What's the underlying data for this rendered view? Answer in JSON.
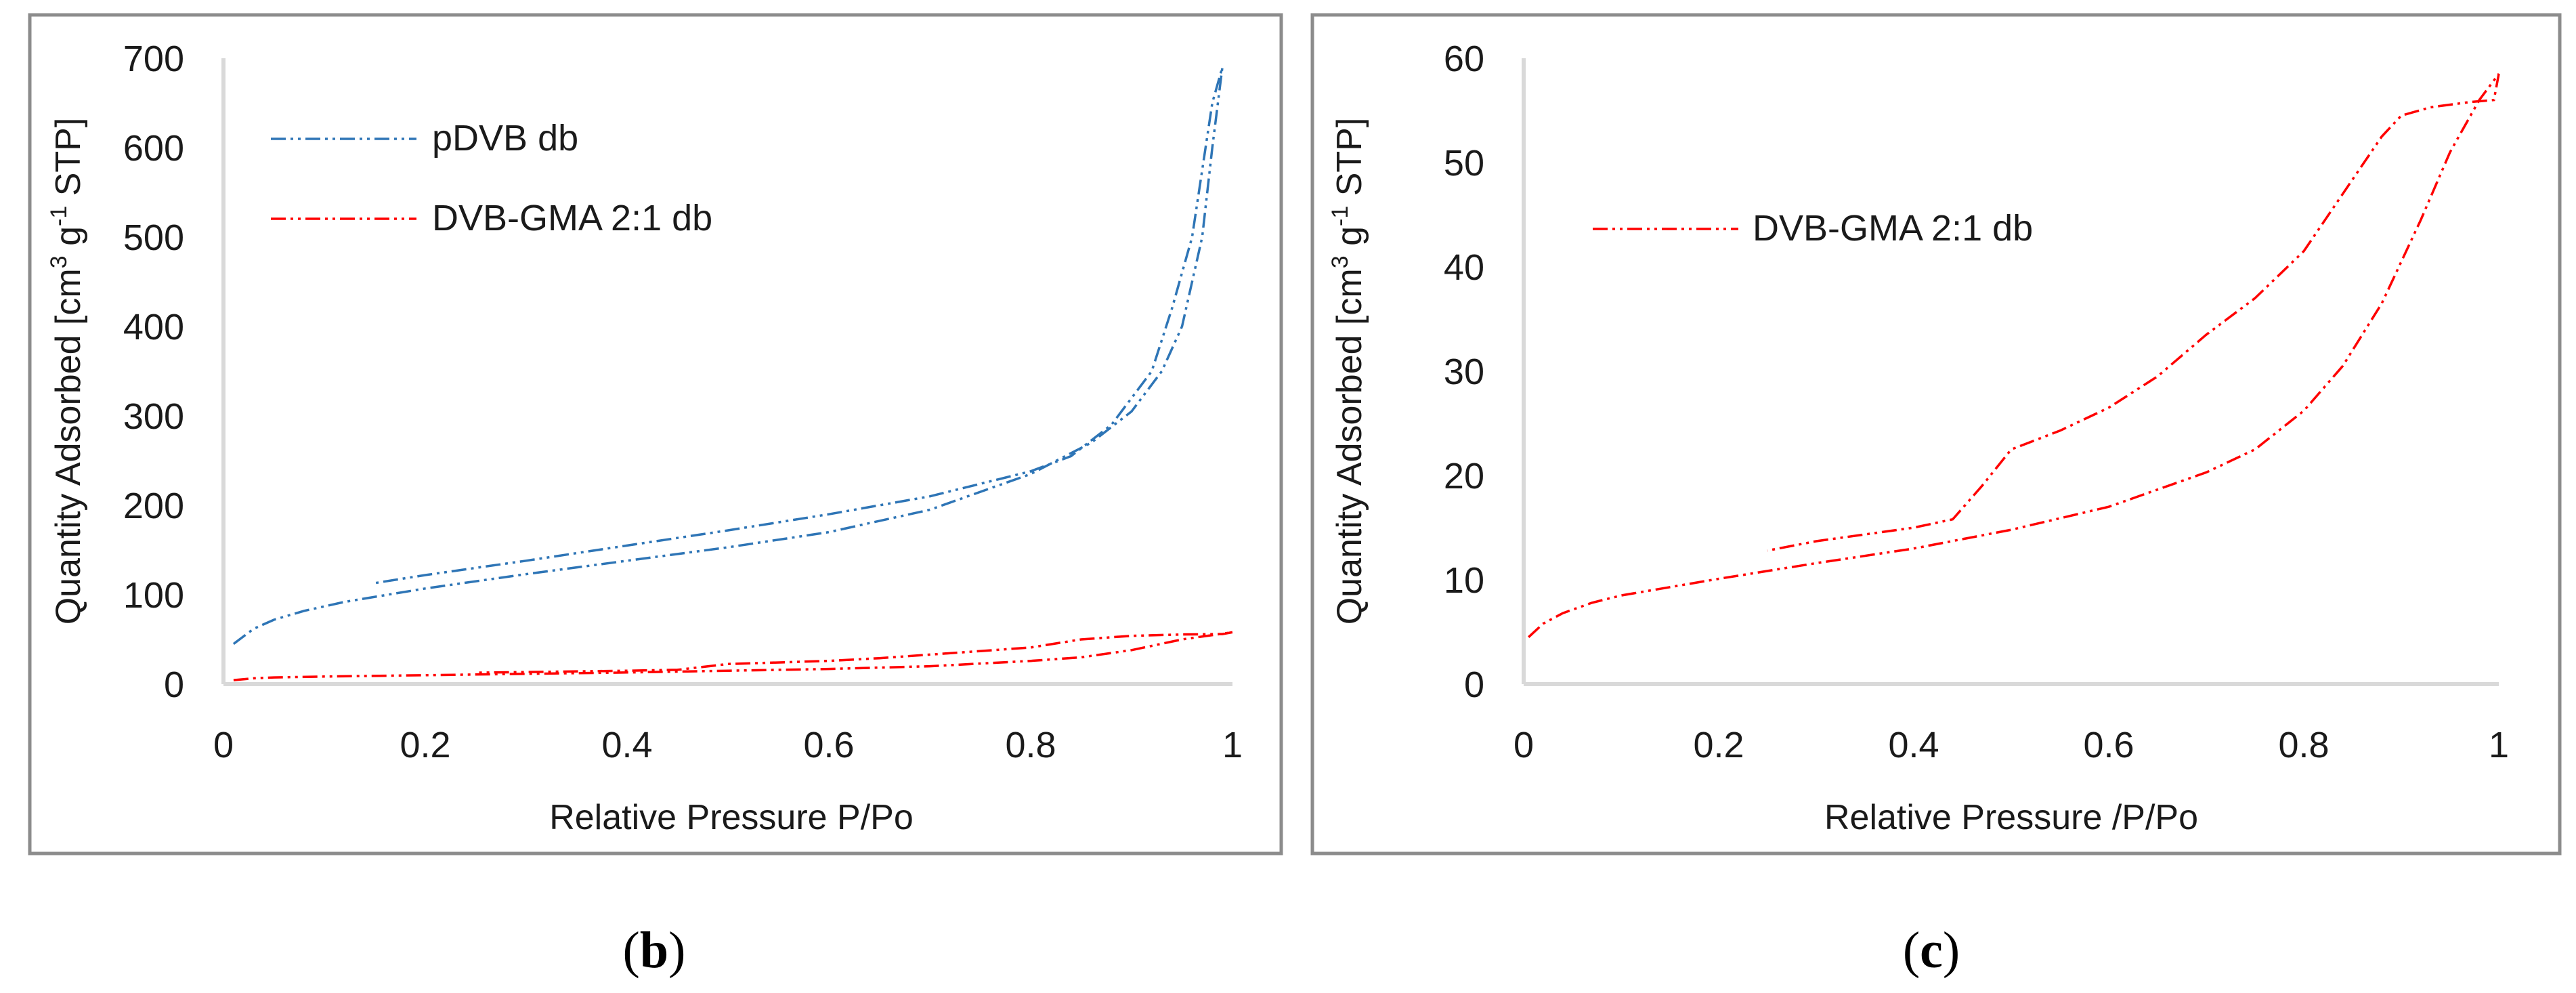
{
  "chart_data": [
    {
      "type": "line",
      "panel_label": "b",
      "xlabel": "Relative Pressure P/Po",
      "ylabel_parts": [
        "Quantity Adsorbed [cm",
        "3",
        " g",
        "-1",
        " STP]"
      ],
      "xlim": [
        0,
        1
      ],
      "ylim": [
        0,
        700
      ],
      "x_ticks": [
        0,
        0.2,
        0.4,
        0.6,
        0.8,
        1
      ],
      "x_tick_labels": [
        "0",
        "0.2",
        "0.4",
        "0.6",
        "0.8",
        "1"
      ],
      "y_ticks": [
        0,
        100,
        200,
        300,
        400,
        500,
        600,
        700
      ],
      "y_tick_labels": [
        "0",
        "100",
        "200",
        "300",
        "400",
        "500",
        "600",
        "700"
      ],
      "legend_position": "top-left",
      "series": [
        {
          "name": "pDVB db",
          "color": "#2e75b6",
          "adsorption": [
            [
              0.01,
              45
            ],
            [
              0.03,
              62
            ],
            [
              0.05,
              72
            ],
            [
              0.08,
              82
            ],
            [
              0.12,
              92
            ],
            [
              0.2,
              107
            ],
            [
              0.3,
              123
            ],
            [
              0.4,
              138
            ],
            [
              0.5,
              153
            ],
            [
              0.6,
              170
            ],
            [
              0.7,
              195
            ],
            [
              0.8,
              235
            ],
            [
              0.86,
              270
            ],
            [
              0.9,
              305
            ],
            [
              0.93,
              350
            ],
            [
              0.95,
              400
            ],
            [
              0.97,
              500
            ],
            [
              0.98,
              600
            ],
            [
              0.99,
              690
            ]
          ],
          "desorption": [
            [
              0.99,
              690
            ],
            [
              0.98,
              650
            ],
            [
              0.96,
              500
            ],
            [
              0.94,
              420
            ],
            [
              0.92,
              350
            ],
            [
              0.88,
              290
            ],
            [
              0.84,
              255
            ],
            [
              0.8,
              238
            ],
            [
              0.7,
              210
            ],
            [
              0.6,
              190
            ],
            [
              0.5,
              172
            ],
            [
              0.4,
              155
            ],
            [
              0.3,
              138
            ],
            [
              0.2,
              122
            ],
            [
              0.15,
              113
            ]
          ]
        },
        {
          "name": "DVB-GMA 2:1 db",
          "color": "#ff0000",
          "adsorption": [
            [
              0.01,
              4.5
            ],
            [
              0.03,
              6.5
            ],
            [
              0.05,
              7.5
            ],
            [
              0.1,
              8.5
            ],
            [
              0.2,
              10
            ],
            [
              0.3,
              11.5
            ],
            [
              0.4,
              13
            ],
            [
              0.5,
              15
            ],
            [
              0.6,
              17
            ],
            [
              0.7,
              20
            ],
            [
              0.8,
              26
            ],
            [
              0.85,
              30
            ],
            [
              0.9,
              38
            ],
            [
              0.95,
              50
            ],
            [
              1,
              58
            ]
          ],
          "desorption": [
            [
              1,
              58
            ],
            [
              0.99,
              56
            ],
            [
              0.95,
              55.5
            ],
            [
              0.9,
              54
            ],
            [
              0.85,
              50
            ],
            [
              0.8,
              41
            ],
            [
              0.75,
              37
            ],
            [
              0.7,
              33
            ],
            [
              0.65,
              29
            ],
            [
              0.6,
              26
            ],
            [
              0.5,
              22.5
            ],
            [
              0.45,
              16
            ],
            [
              0.4,
              15
            ],
            [
              0.3,
              13.5
            ],
            [
              0.25,
              12.8
            ]
          ]
        }
      ]
    },
    {
      "type": "line",
      "panel_label": "c",
      "xlabel": "Relative Pressure /P/Po",
      "ylabel_parts": [
        "Quantity Adsorbed [cm",
        "3",
        " g",
        "-1",
        " STP]"
      ],
      "xlim": [
        0,
        1
      ],
      "ylim": [
        0,
        60
      ],
      "x_ticks": [
        0,
        0.2,
        0.4,
        0.6,
        0.8,
        1
      ],
      "x_tick_labels": [
        "0",
        "0.2",
        "0.4",
        "0.6",
        "0.8",
        "1"
      ],
      "y_ticks": [
        0,
        10,
        20,
        30,
        40,
        50,
        60
      ],
      "y_tick_labels": [
        "0",
        "10",
        "20",
        "30",
        "40",
        "50",
        "60"
      ],
      "legend_position": "top-left",
      "series": [
        {
          "name": "DVB-GMA 2:1 db",
          "color": "#ff0000",
          "adsorption": [
            [
              0.005,
              4.5
            ],
            [
              0.02,
              5.8
            ],
            [
              0.04,
              6.8
            ],
            [
              0.07,
              7.8
            ],
            [
              0.1,
              8.5
            ],
            [
              0.15,
              9.3
            ],
            [
              0.2,
              10.1
            ],
            [
              0.3,
              11.6
            ],
            [
              0.4,
              13
            ],
            [
              0.5,
              14.8
            ],
            [
              0.6,
              17
            ],
            [
              0.7,
              20.3
            ],
            [
              0.75,
              22.5
            ],
            [
              0.8,
              26.2
            ],
            [
              0.84,
              30.5
            ],
            [
              0.88,
              36.5
            ],
            [
              0.92,
              44.5
            ],
            [
              0.95,
              51
            ],
            [
              0.98,
              56
            ],
            [
              1,
              58.5
            ]
          ],
          "desorption": [
            [
              1,
              58.5
            ],
            [
              0.995,
              56
            ],
            [
              0.97,
              55.8
            ],
            [
              0.93,
              55.3
            ],
            [
              0.9,
              54.5
            ],
            [
              0.88,
              52.5
            ],
            [
              0.84,
              47
            ],
            [
              0.8,
              41.5
            ],
            [
              0.75,
              37
            ],
            [
              0.7,
              33.5
            ],
            [
              0.65,
              29.5
            ],
            [
              0.6,
              26.5
            ],
            [
              0.55,
              24.3
            ],
            [
              0.5,
              22.5
            ],
            [
              0.47,
              19
            ],
            [
              0.44,
              15.8
            ],
            [
              0.4,
              15
            ],
            [
              0.3,
              13.7
            ],
            [
              0.25,
              12.8
            ]
          ]
        }
      ]
    }
  ]
}
